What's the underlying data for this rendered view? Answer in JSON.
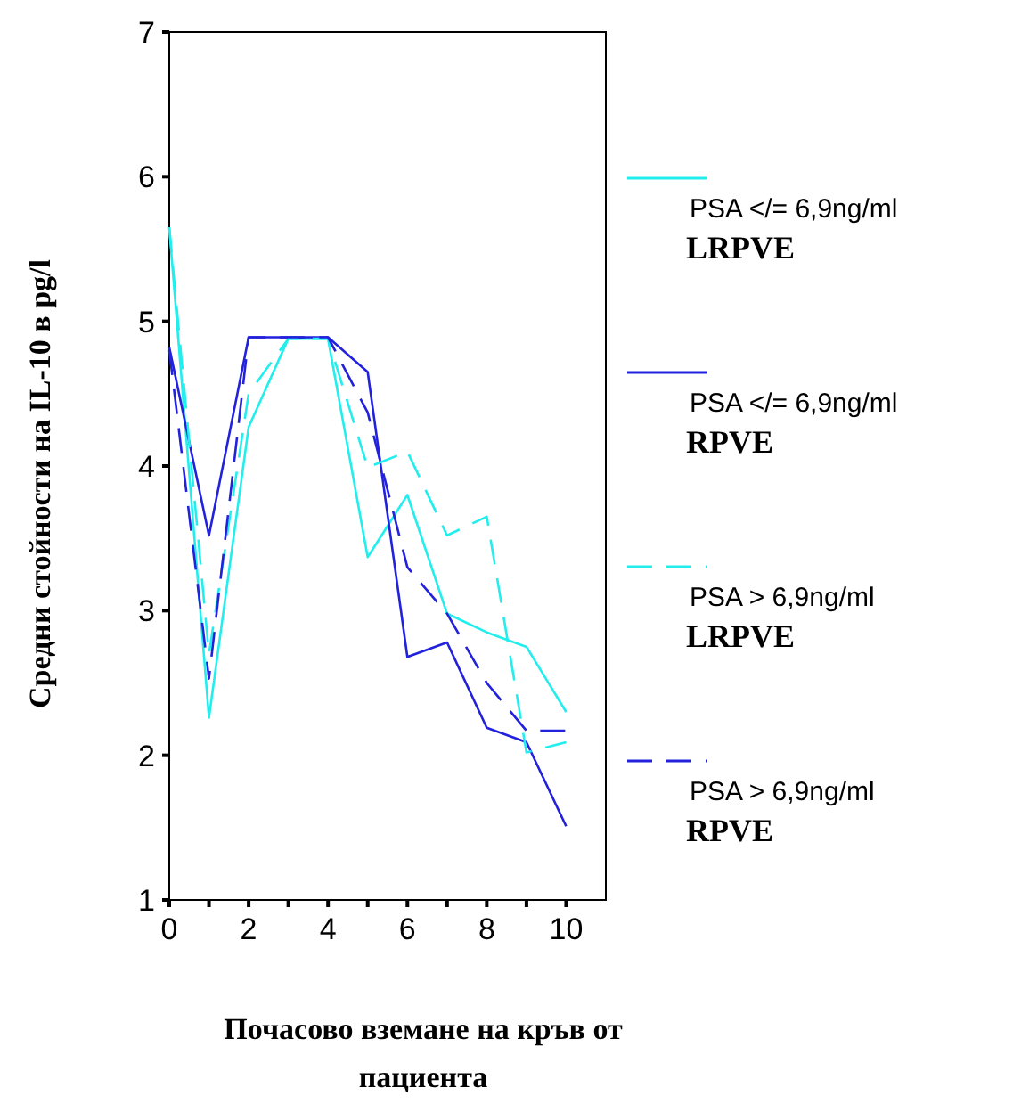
{
  "chart_data": {
    "type": "line",
    "xlabel": "Почасово вземане на кръв от пациента",
    "ylabel": "Средни стойности на IL-10 в pg/l",
    "x": [
      0,
      1,
      2,
      3,
      4,
      5,
      6,
      7,
      8,
      9,
      10
    ],
    "xlim": [
      0,
      11
    ],
    "xticks": [
      0,
      {
        "value": 1,
        "label": null
      },
      2,
      {
        "value": 3,
        "label": null
      },
      4,
      {
        "value": 5,
        "label": null
      },
      6,
      {
        "value": 7,
        "label": null
      },
      8,
      {
        "value": 9,
        "label": null
      },
      10
    ],
    "ylim": [
      1,
      7
    ],
    "yticks": [
      1,
      2,
      3,
      4,
      5,
      6,
      7
    ],
    "grid": false,
    "legend": "right",
    "marker": "none",
    "series": [
      {
        "name": "PSA </= 6,9ng/ml\nLRPVE",
        "color": "#22eeee",
        "line_style": "solid",
        "values": [
          5.65,
          2.26,
          4.27,
          4.88,
          4.88,
          3.37,
          3.8,
          2.98,
          2.85,
          2.75,
          2.3
        ]
      },
      {
        "name": "PSA </= 6,9ng/ml\nRPVE",
        "color": "#2222dd",
        "line_style": "solid",
        "values": [
          4.82,
          3.52,
          4.89,
          4.89,
          4.89,
          4.65,
          2.68,
          2.78,
          2.19,
          2.09,
          1.51
        ]
      },
      {
        "name": "PSA > 6,9ng/ml\nLRPVE",
        "color": "#22eeee",
        "line_style": "dashed",
        "values": [
          5.65,
          2.7,
          4.5,
          4.88,
          4.88,
          3.99,
          4.1,
          3.52,
          3.65,
          2.02,
          2.09
        ]
      },
      {
        "name": "PSA > 6,9ng/ml\nRPVE",
        "color": "#2222dd",
        "line_style": "dashed",
        "values": [
          4.8,
          2.53,
          4.89,
          4.89,
          4.89,
          4.37,
          3.3,
          2.98,
          2.5,
          2.17,
          2.17
        ]
      }
    ]
  }
}
